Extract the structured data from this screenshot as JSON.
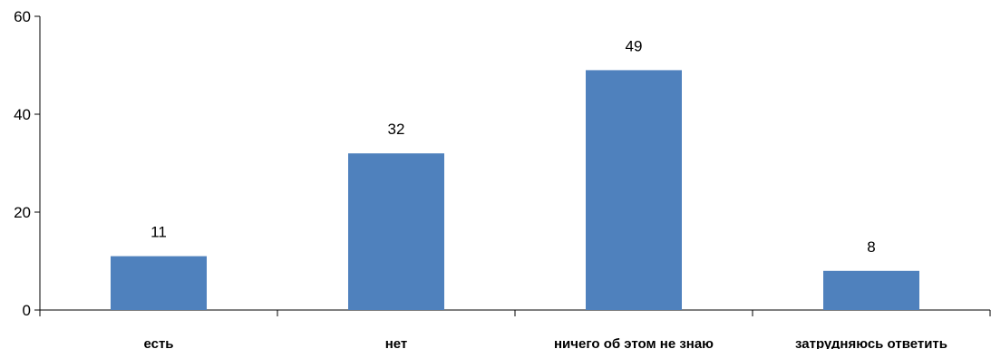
{
  "chart_data": {
    "type": "bar",
    "categories": [
      "есть",
      "нет",
      "ничего об этом не знаю",
      "затрудняюсь ответить"
    ],
    "values": [
      11,
      32,
      49,
      8
    ],
    "bar_value_labels": [
      "11",
      "32",
      "49",
      "8"
    ],
    "title": "",
    "xlabel": "",
    "ylabel": "",
    "ylim": [
      0,
      60
    ],
    "yticks": [
      0,
      20,
      40,
      60
    ],
    "grid": false,
    "legend": "none",
    "colors": {
      "bar": "#4F81BD",
      "axis": "#000000",
      "text": "#000000"
    }
  }
}
